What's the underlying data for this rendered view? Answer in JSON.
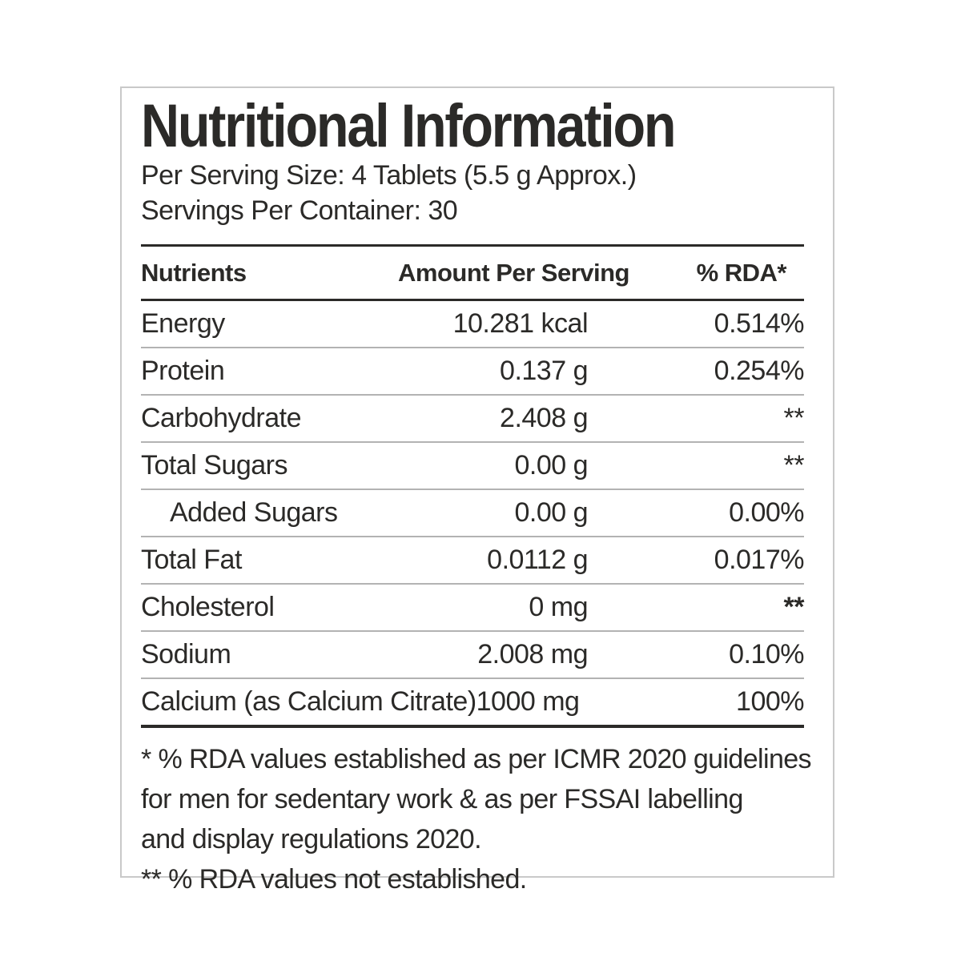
{
  "title": "Nutritional Information",
  "serving": {
    "per_serving_size": "Per Serving Size: 4 Tablets (5.5 g Approx.)",
    "servings_per_container": "Servings Per Container: 30"
  },
  "table": {
    "headers": {
      "nutrient": "Nutrients",
      "amount": "Amount Per Serving",
      "rda": "% RDA*"
    },
    "rows": [
      {
        "nutrient": "Energy",
        "amount": "10.281 kcal",
        "rda": "0.514%"
      },
      {
        "nutrient": "Protein",
        "amount": "0.137 g",
        "rda": "0.254%"
      },
      {
        "nutrient": "Carbohydrate",
        "amount": "2.408 g",
        "rda": "**"
      },
      {
        "nutrient": "Total Sugars",
        "amount": "0.00 g",
        "rda": "**"
      },
      {
        "nutrient": "Added Sugars",
        "amount": "0.00 g",
        "rda": "0.00%"
      },
      {
        "nutrient": "Total Fat",
        "amount": "0.0112 g",
        "rda": "0.017%"
      },
      {
        "nutrient": "Cholesterol",
        "amount": "0 mg",
        "rda": "**"
      },
      {
        "nutrient": "Sodium",
        "amount": "2.008 mg",
        "rda": "0.10%"
      },
      {
        "nutrient": "Calcium (as Calcium Citrate)",
        "amount": "1000 mg",
        "rda": "100%"
      }
    ]
  },
  "footnote_lines": [
    "* % RDA values established as per ICMR 2020 guidelines",
    "for men for sedentary work & as per FSSAI labelling",
    "and display regulations 2020.",
    "** % RDA values not established."
  ],
  "colors": {
    "text": "#2b2a28",
    "rule_dark": "#2b2a28",
    "rule_light": "#b3b3b3",
    "outer_border": "#c9c9c9",
    "background": "#ffffff"
  }
}
